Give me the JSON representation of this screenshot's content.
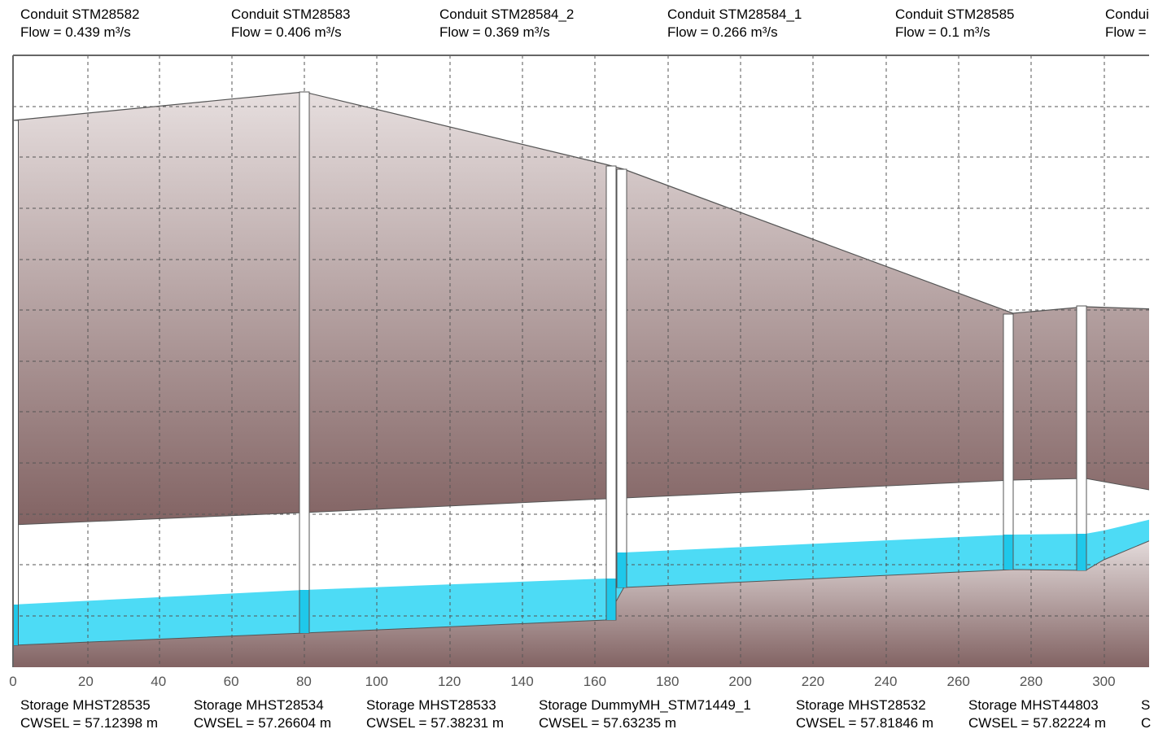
{
  "chart_data": {
    "type": "area",
    "title": "",
    "xlabel": "",
    "ylabel": "",
    "xlim": [
      0,
      315
    ],
    "x_ticks": [
      0,
      20,
      40,
      60,
      80,
      100,
      120,
      140,
      160,
      180,
      200,
      220,
      240,
      260,
      280,
      300
    ],
    "grid": true,
    "colors": {
      "ground_top": "#e6dede",
      "ground_bottom": "#826363",
      "pipe_fill": "#ffffff",
      "water": "#4ddbf5",
      "water_in_node": "#1fc8ea",
      "grid": "#555555",
      "frame": "#666666",
      "outline": "#555555"
    },
    "conduits": [
      {
        "name": "Conduit STM28582",
        "flow": "Flow = 0.439 m³/s"
      },
      {
        "name": "Conduit STM28583",
        "flow": "Flow = 0.406 m³/s"
      },
      {
        "name": "Conduit STM28584_2",
        "flow": "Flow = 0.369 m³/s"
      },
      {
        "name": "Conduit STM28584_1",
        "flow": "Flow = 0.266 m³/s"
      },
      {
        "name": "Conduit STM28585",
        "flow": "Flow = 0.1 m³/s"
      },
      {
        "name": "Condui",
        "flow": "Flow ="
      }
    ],
    "storages": [
      {
        "name": "Storage MHST28535",
        "cwsel": "CWSEL = 57.12398 m",
        "x": 0
      },
      {
        "name": "Storage MHST28534",
        "cwsel": "CWSEL = 57.26604 m",
        "x": 80
      },
      {
        "name": "Storage MHST28533",
        "cwsel": "CWSEL = 57.38231 m",
        "x": 165
      },
      {
        "name": "Storage DummyMH_STM71449_1",
        "cwsel": "CWSEL = 57.63235 m",
        "x": 168
      },
      {
        "name": "Storage MHST28532",
        "cwsel": "CWSEL = 57.81846 m",
        "x": 275
      },
      {
        "name": "Storage MHST44803",
        "cwsel": "CWSEL = 57.82224 m",
        "x": 295
      },
      {
        "name": "S",
        "cwsel": "C",
        "x": 315
      }
    ]
  }
}
